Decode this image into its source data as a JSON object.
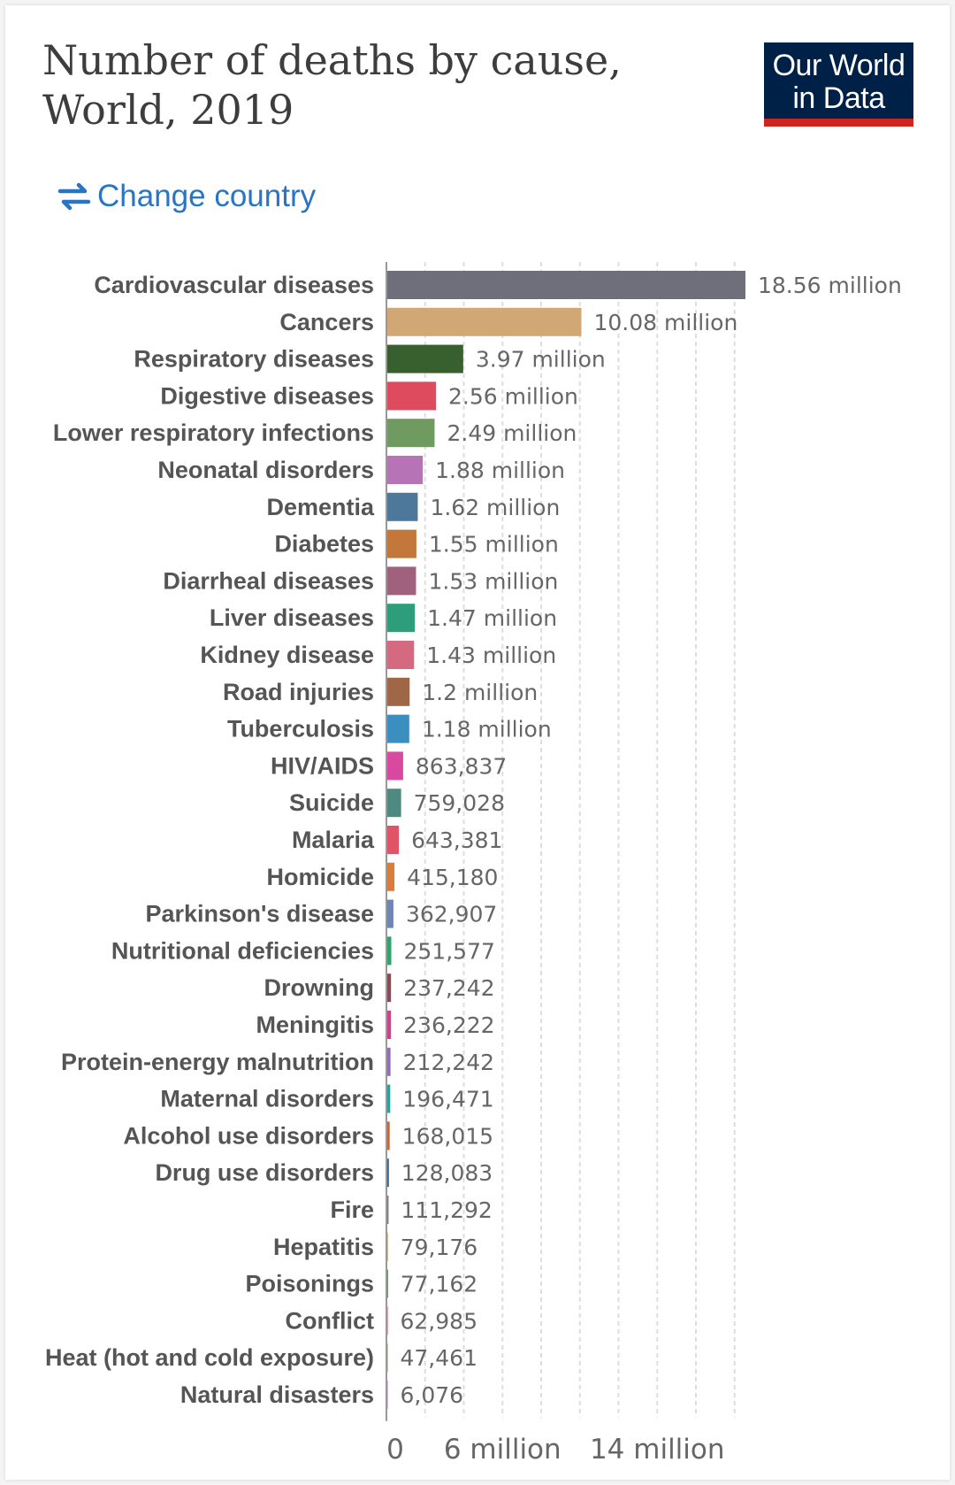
{
  "title": "Number of deaths by cause, World, 2019",
  "logo": {
    "line1": "Our World",
    "line2": "in Data"
  },
  "change_country": {
    "label": "Change country",
    "icon": "swap-arrows-icon"
  },
  "colors": {
    "link": "#2a74c5",
    "logo_bg": "#002147",
    "logo_accent": "#ce261e"
  },
  "chart_data": {
    "type": "bar",
    "orientation": "horizontal",
    "title": "Number of deaths by cause, World, 2019",
    "xlim": [
      0,
      18560000
    ],
    "grid": true,
    "x_ticks": [
      {
        "value": 0,
        "label": "0"
      },
      {
        "value": 6000000,
        "label": "6 million"
      },
      {
        "value": 14000000,
        "label": "14 million"
      }
    ],
    "bars": [
      {
        "category": "Cardiovascular diseases",
        "value": 18560000,
        "label": "18.56 million",
        "color": "#6f6f7b"
      },
      {
        "category": "Cancers",
        "value": 10080000,
        "label": "10.08 million",
        "color": "#d1a775"
      },
      {
        "category": "Respiratory diseases",
        "value": 3970000,
        "label": "3.97 million",
        "color": "#38602f"
      },
      {
        "category": "Digestive diseases",
        "value": 2560000,
        "label": "2.56 million",
        "color": "#df4b5e"
      },
      {
        "category": "Lower respiratory infections",
        "value": 2490000,
        "label": "2.49 million",
        "color": "#6f9a60"
      },
      {
        "category": "Neonatal disorders",
        "value": 1880000,
        "label": "1.88 million",
        "color": "#b673b6"
      },
      {
        "category": "Dementia",
        "value": 1620000,
        "label": "1.62 million",
        "color": "#4e7899"
      },
      {
        "category": "Diabetes",
        "value": 1550000,
        "label": "1.55 million",
        "color": "#c4773a"
      },
      {
        "category": "Diarrheal diseases",
        "value": 1530000,
        "label": "1.53 million",
        "color": "#a0617f"
      },
      {
        "category": "Liver diseases",
        "value": 1470000,
        "label": "1.47 million",
        "color": "#2e9e7a"
      },
      {
        "category": "Kidney disease",
        "value": 1430000,
        "label": "1.43 million",
        "color": "#d4697f"
      },
      {
        "category": "Road injuries",
        "value": 1200000,
        "label": "1.2 million",
        "color": "#a06648"
      },
      {
        "category": "Tuberculosis",
        "value": 1180000,
        "label": "1.18 million",
        "color": "#3a8fbe"
      },
      {
        "category": "HIV/AIDS",
        "value": 863837,
        "label": "863,837",
        "color": "#d84aa0"
      },
      {
        "category": "Suicide",
        "value": 759028,
        "label": "759,028",
        "color": "#4e8a80"
      },
      {
        "category": "Malaria",
        "value": 643381,
        "label": "643,381",
        "color": "#df5466"
      },
      {
        "category": "Homicide",
        "value": 415180,
        "label": "415,180",
        "color": "#d77f3a"
      },
      {
        "category": "Parkinson's disease",
        "value": 362907,
        "label": "362,907",
        "color": "#6f86b3"
      },
      {
        "category": "Nutritional deficiencies",
        "value": 251577,
        "label": "251,577",
        "color": "#2ea36a"
      },
      {
        "category": "Drowning",
        "value": 237242,
        "label": "237,242",
        "color": "#8a4a55"
      },
      {
        "category": "Meningitis",
        "value": 236222,
        "label": "236,222",
        "color": "#d13f8a"
      },
      {
        "category": "Protein-energy malnutrition",
        "value": 212242,
        "label": "212,242",
        "color": "#8f6fb0"
      },
      {
        "category": "Maternal disorders",
        "value": 196471,
        "label": "196,471",
        "color": "#2e9e9a"
      },
      {
        "category": "Alcohol use disorders",
        "value": 168015,
        "label": "168,015",
        "color": "#c8643a"
      },
      {
        "category": "Drug use disorders",
        "value": 128083,
        "label": "128,083",
        "color": "#3c5f8a"
      },
      {
        "category": "Fire",
        "value": 111292,
        "label": "111,292",
        "color": "#7a7a7a"
      },
      {
        "category": "Hepatitis",
        "value": 79176,
        "label": "79,176",
        "color": "#c9a77a"
      },
      {
        "category": "Poisonings",
        "value": 77162,
        "label": "77,162",
        "color": "#38602f"
      },
      {
        "category": "Conflict",
        "value": 62985,
        "label": "62,985",
        "color": "#df4b5e"
      },
      {
        "category": "Heat (hot and cold exposure)",
        "value": 47461,
        "label": "47,461",
        "color": "#6f9a60"
      },
      {
        "category": "Natural disasters",
        "value": 6076,
        "label": "6,076",
        "color": "#b673b6"
      }
    ]
  }
}
